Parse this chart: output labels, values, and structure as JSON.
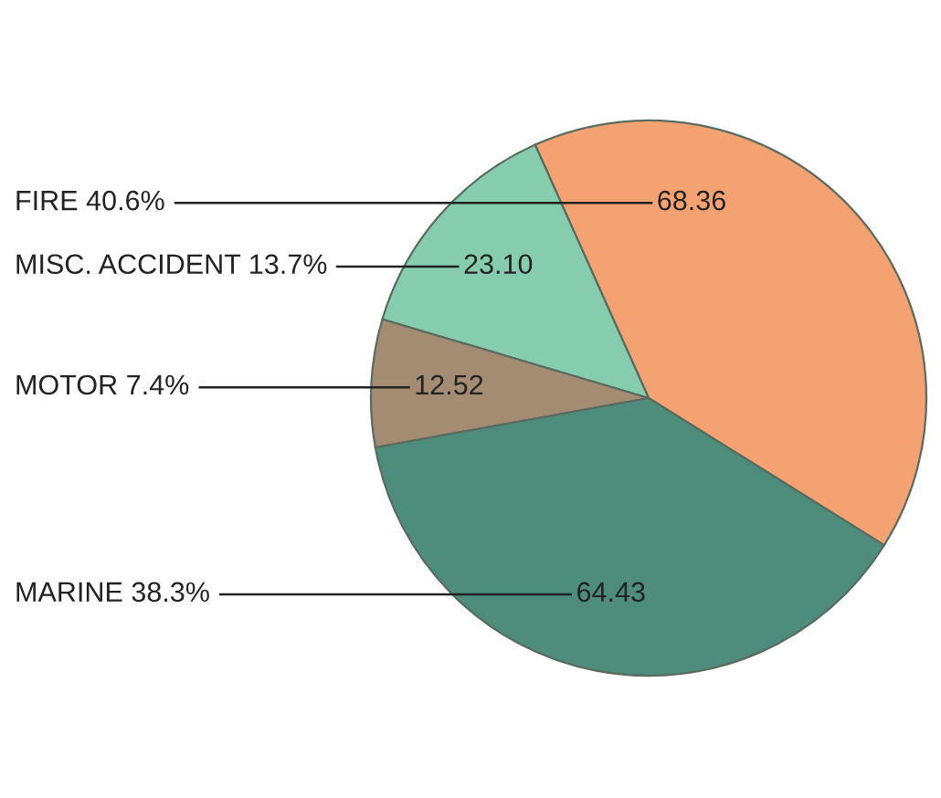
{
  "chart_data": {
    "type": "pie",
    "categories": [
      "FIRE 40.6%",
      "MISC. ACCIDENT 13.7%",
      "MOTOR 7.4%",
      "MARINE 38.3%"
    ],
    "values": [
      68.36,
      23.1,
      12.52,
      64.43
    ],
    "value_labels": [
      "68.36",
      "23.10",
      "12.52",
      "64.43"
    ],
    "colors": [
      "#f5a272",
      "#86cdb0",
      "#a38c72",
      "#4e8c7c"
    ]
  }
}
